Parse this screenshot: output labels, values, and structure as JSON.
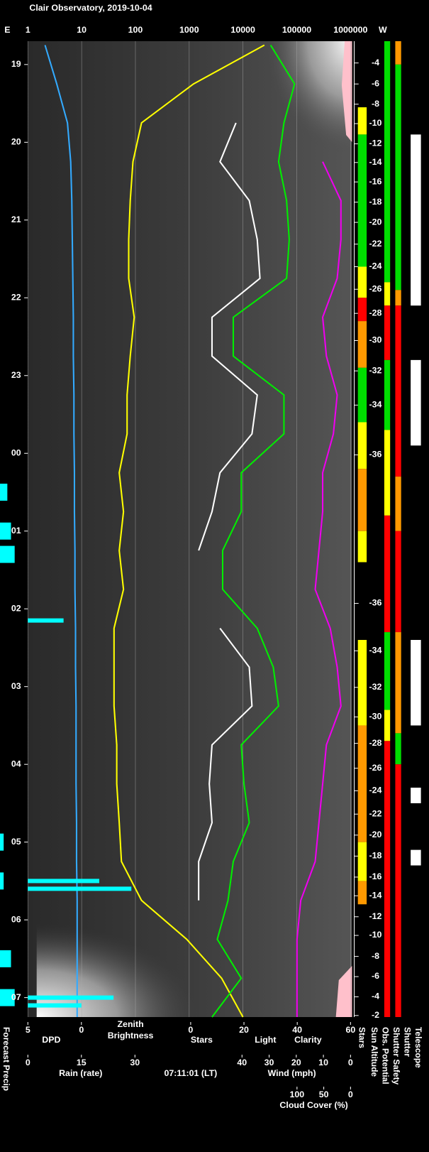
{
  "chart_data": {
    "type": "line",
    "title": "Clair Observatory, 2019-10-04",
    "timestamp": "07:11:01 (LT)",
    "tlim": [
      18.7,
      31.25
    ],
    "tticks": [
      19,
      20,
      21,
      22,
      23,
      {
        "value": 24,
        "label": "00"
      },
      {
        "value": 25,
        "label": "01"
      },
      {
        "value": 26,
        "label": "02"
      },
      {
        "value": 27,
        "label": "03"
      },
      {
        "value": 28,
        "label": "04"
      },
      {
        "value": 29,
        "label": "05"
      },
      {
        "value": 30,
        "label": "06"
      },
      {
        "value": 31,
        "label": "07"
      }
    ],
    "top_axis": {
      "left_label": "E",
      "right_label": "W",
      "log": true,
      "lim": [
        1,
        1000000
      ],
      "ticks": [
        1,
        10,
        100,
        1000,
        10000,
        100000,
        1000000
      ]
    },
    "scales": [
      {
        "labels": [
          {
            "text": "DPD",
            "color": "#3399ff"
          }
        ],
        "lim": [
          5,
          0
        ],
        "ticks": [
          5,
          0
        ]
      },
      {
        "labels": [
          {
            "text": "Zenith",
            "color": "#ffff00"
          },
          {
            "text": "Brightness",
            "color": "#ffff00"
          }
        ],
        "lim": [
          1,
          1000000
        ],
        "log": true,
        "ticks": []
      },
      {
        "labels": [
          {
            "text": "Stars",
            "color": "#ffffff"
          },
          {
            "text": "Light",
            "color": "#ffff00"
          },
          {
            "text": "Clarity",
            "color": "#00ee00"
          }
        ],
        "lim": [
          0,
          60
        ],
        "ticks": [
          0,
          20,
          40,
          60
        ]
      },
      {
        "labels": [
          {
            "text": "Rain (rate)",
            "color": "#3399ff"
          }
        ],
        "lim": [
          0,
          30
        ],
        "ticks": [
          0,
          15,
          30
        ]
      },
      {
        "labels": [
          {
            "text": "Wind (mph)",
            "color": "#ff9999"
          }
        ],
        "lim": [
          40,
          0
        ],
        "ticks": [
          40,
          30,
          20,
          10,
          0
        ]
      },
      {
        "labels": [
          {
            "text": "Cloud Cover (%)",
            "color": "#ee00ee"
          }
        ],
        "lim": [
          100,
          0
        ],
        "ticks": [
          100,
          50,
          0
        ]
      }
    ],
    "times": [
      18.75,
      19.25,
      19.75,
      20.25,
      20.75,
      21.25,
      21.75,
      22.25,
      22.75,
      23.25,
      23.75,
      24.25,
      24.75,
      25.25,
      25.75,
      26.25,
      26.75,
      27.25,
      27.75,
      28.25,
      28.75,
      29.25,
      29.75,
      30.25,
      30.75,
      31.25
    ],
    "series": [
      {
        "scale": 0,
        "color": "#33aaff",
        "values": [
          3.4,
          2.3,
          1.3,
          1.0,
          0.9,
          0.85,
          0.8,
          0.75,
          0.75,
          0.7,
          0.7,
          0.65,
          0.65,
          0.6,
          0.6,
          0.55,
          0.55,
          0.5,
          0.5,
          0.5,
          0.45,
          0.45,
          0.4,
          0.4,
          0.4,
          0.4
        ]
      },
      {
        "scale": 1,
        "color": "#ffff00",
        "values": [
          25000,
          1200,
          130,
          90,
          80,
          75,
          75,
          95,
          80,
          70,
          70,
          50,
          60,
          50,
          60,
          40,
          40,
          40,
          45,
          45,
          50,
          55,
          130,
          900,
          4000,
          10000
        ]
      },
      {
        "scale": 2,
        "color": "#ffffff",
        "values": [
          null,
          null,
          17,
          11,
          22,
          25,
          26,
          8,
          8,
          25,
          23,
          11,
          8,
          3,
          null,
          11,
          22,
          23,
          8,
          7,
          8,
          3,
          3,
          null,
          null,
          null
        ]
      },
      {
        "scale": 2,
        "color": "#00ee00",
        "values": [
          30,
          39,
          35,
          33,
          36,
          37,
          36,
          16,
          16,
          35,
          35,
          19,
          19,
          12,
          12,
          25,
          31,
          33,
          19,
          20,
          22,
          16,
          14,
          10,
          19,
          8
        ]
      },
      {
        "scale": 5,
        "color": "#ee00ee",
        "values": [
          null,
          null,
          null,
          52,
          18,
          18,
          25,
          52,
          45,
          25,
          32,
          52,
          52,
          59,
          66,
          38,
          25,
          18,
          45,
          52,
          59,
          66,
          93,
          100,
          100,
          100
        ]
      }
    ],
    "rain": {
      "scale": 3,
      "color": "#00ffff",
      "times": [
        26.15,
        29.5,
        29.6,
        31.0,
        31.1
      ],
      "values": [
        10,
        20,
        29,
        24,
        15
      ]
    },
    "forecast_precip": {
      "label": "Forecast Precip",
      "color": "#00ffff",
      "times": [
        24.5,
        25.0,
        25.3,
        29.0,
        29.5,
        30.5,
        31.0
      ],
      "values": [
        2,
        3,
        4,
        1,
        1,
        3,
        4
      ]
    },
    "sun_altitude": {
      "ticks": [
        {
          "value": 18.98,
          "label": "-4"
        },
        {
          "value": 19.25,
          "label": "-6"
        },
        {
          "value": 19.51,
          "label": "-8"
        },
        {
          "value": 19.76,
          "label": "-10"
        },
        {
          "value": 20.02,
          "label": "-12"
        },
        {
          "value": 20.26,
          "label": "-14"
        },
        {
          "value": 20.51,
          "label": "-16"
        },
        {
          "value": 20.77,
          "label": "-18"
        },
        {
          "value": 21.03,
          "label": "-20"
        },
        {
          "value": 21.31,
          "label": "-22"
        },
        {
          "value": 21.6,
          "label": "-24"
        },
        {
          "value": 21.89,
          "label": "-26"
        },
        {
          "value": 22.2,
          "label": "-28"
        },
        {
          "value": 22.55,
          "label": "-30"
        },
        {
          "value": 22.94,
          "label": "-32"
        },
        {
          "value": 23.38,
          "label": "-34"
        },
        {
          "value": 24.02,
          "label": "-36"
        },
        {
          "value": 25.93,
          "label": "-36"
        },
        {
          "value": 26.54,
          "label": "-34"
        },
        {
          "value": 27.01,
          "label": "-32"
        },
        {
          "value": 27.39,
          "label": "-30"
        },
        {
          "value": 27.73,
          "label": "-28"
        },
        {
          "value": 28.05,
          "label": "-26"
        },
        {
          "value": 28.34,
          "label": "-24"
        },
        {
          "value": 28.64,
          "label": "-22"
        },
        {
          "value": 28.91,
          "label": "-20"
        },
        {
          "value": 29.18,
          "label": "-18"
        },
        {
          "value": 29.45,
          "label": "-16"
        },
        {
          "value": 29.69,
          "label": "-14"
        },
        {
          "value": 29.96,
          "label": "-12"
        },
        {
          "value": 30.2,
          "label": "-10"
        },
        {
          "value": 30.47,
          "label": "-8"
        },
        {
          "value": 30.73,
          "label": "-6"
        },
        {
          "value": 30.99,
          "label": "-4"
        },
        {
          "value": 31.23,
          "label": "-2"
        }
      ]
    },
    "status_columns": [
      {
        "name": "Stars",
        "segments": [
          [
            19.55,
            19.9,
            "#ffff00"
          ],
          [
            19.9,
            21.6,
            "#00dd00"
          ],
          [
            21.6,
            22.0,
            "#ffff00"
          ],
          [
            22.0,
            22.3,
            "#ff0000"
          ],
          [
            22.3,
            22.9,
            "#ff9900"
          ],
          [
            22.9,
            23.6,
            "#00dd00"
          ],
          [
            23.6,
            24.2,
            "#ffff00"
          ],
          [
            24.2,
            25.0,
            "#ff9900"
          ],
          [
            25.0,
            25.4,
            "#ffff00"
          ],
          [
            26.4,
            27.5,
            "#ffff00"
          ],
          [
            27.5,
            29.0,
            "#ff9900"
          ],
          [
            29.0,
            29.5,
            "#ffff00"
          ],
          [
            29.5,
            29.8,
            "#ff9900"
          ]
        ]
      },
      {
        "name": "Sun Altitude",
        "segments": []
      },
      {
        "name": "Obs. Potential",
        "segments": [
          [
            18.7,
            21.8,
            "#00dd00"
          ],
          [
            21.8,
            22.1,
            "#ffff00"
          ],
          [
            22.1,
            22.8,
            "#ff0000"
          ],
          [
            22.8,
            23.7,
            "#00dd00"
          ],
          [
            23.7,
            24.8,
            "#ffff00"
          ],
          [
            24.8,
            26.3,
            "#ff0000"
          ],
          [
            26.3,
            27.3,
            "#00dd00"
          ],
          [
            27.3,
            27.7,
            "#ffff00"
          ],
          [
            27.7,
            31.25,
            "#ff0000"
          ]
        ]
      },
      {
        "name": "Shutter Safety",
        "segments": [
          [
            18.7,
            19.0,
            "#ff9900"
          ],
          [
            19.0,
            21.9,
            "#00dd00"
          ],
          [
            21.9,
            22.1,
            "#ff9900"
          ],
          [
            22.1,
            24.3,
            "#ff0000"
          ],
          [
            24.3,
            25.0,
            "#ff9900"
          ],
          [
            25.0,
            26.3,
            "#ff0000"
          ],
          [
            26.3,
            27.6,
            "#ff9900"
          ],
          [
            27.6,
            28.0,
            "#00dd00"
          ],
          [
            28.0,
            31.25,
            "#ff0000"
          ]
        ]
      },
      {
        "name": "Shutter",
        "segments": []
      },
      {
        "name": "Telescope",
        "segments": [
          [
            19.9,
            22.1,
            "#ffffff"
          ],
          [
            22.8,
            23.9,
            "#ffffff"
          ],
          [
            26.4,
            27.5,
            "#ffffff"
          ],
          [
            28.3,
            28.5,
            "#ffffff"
          ],
          [
            29.1,
            29.3,
            "#ffffff"
          ]
        ]
      }
    ]
  }
}
